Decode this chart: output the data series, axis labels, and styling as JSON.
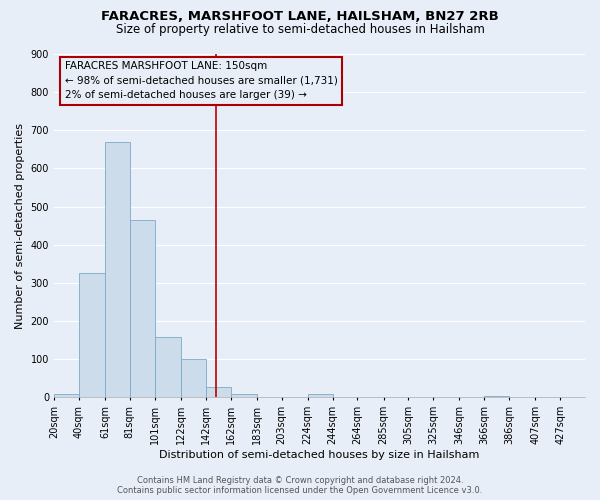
{
  "title": "FARACRES, MARSHFOOT LANE, HAILSHAM, BN27 2RB",
  "subtitle": "Size of property relative to semi-detached houses in Hailsham",
  "xlabel": "Distribution of semi-detached houses by size in Hailsham",
  "ylabel": "Number of semi-detached properties",
  "bin_labels": [
    "20sqm",
    "40sqm",
    "61sqm",
    "81sqm",
    "101sqm",
    "122sqm",
    "142sqm",
    "162sqm",
    "183sqm",
    "203sqm",
    "224sqm",
    "244sqm",
    "264sqm",
    "285sqm",
    "305sqm",
    "325sqm",
    "346sqm",
    "366sqm",
    "386sqm",
    "407sqm",
    "427sqm"
  ],
  "bin_edges": [
    20,
    40,
    61,
    81,
    101,
    122,
    142,
    162,
    183,
    203,
    224,
    244,
    264,
    285,
    305,
    325,
    346,
    366,
    386,
    407,
    427,
    447
  ],
  "bar_heights": [
    10,
    325,
    670,
    465,
    158,
    100,
    28,
    10,
    0,
    0,
    8,
    0,
    0,
    0,
    0,
    0,
    0,
    5,
    0,
    0,
    0
  ],
  "bar_color": "#ccdcea",
  "bar_edge_color": "#7aaac8",
  "vline_x": 150,
  "vline_color": "#bb0000",
  "ylim": [
    0,
    900
  ],
  "yticks": [
    0,
    100,
    200,
    300,
    400,
    500,
    600,
    700,
    800,
    900
  ],
  "bg_color": "#e8eef8",
  "grid_color": "#ffffff",
  "annotation_title": "FARACRES MARSHFOOT LANE: 150sqm",
  "annotation_line1": "← 98% of semi-detached houses are smaller (1,731)",
  "annotation_line2": "2% of semi-detached houses are larger (39) →",
  "annotation_box_color": "#aa0000",
  "footer_line1": "Contains HM Land Registry data © Crown copyright and database right 2024.",
  "footer_line2": "Contains public sector information licensed under the Open Government Licence v3.0.",
  "title_fontsize": 9.5,
  "subtitle_fontsize": 8.5,
  "annot_fontsize": 7.5,
  "axis_label_fontsize": 8,
  "tick_fontsize": 7,
  "footer_fontsize": 6
}
